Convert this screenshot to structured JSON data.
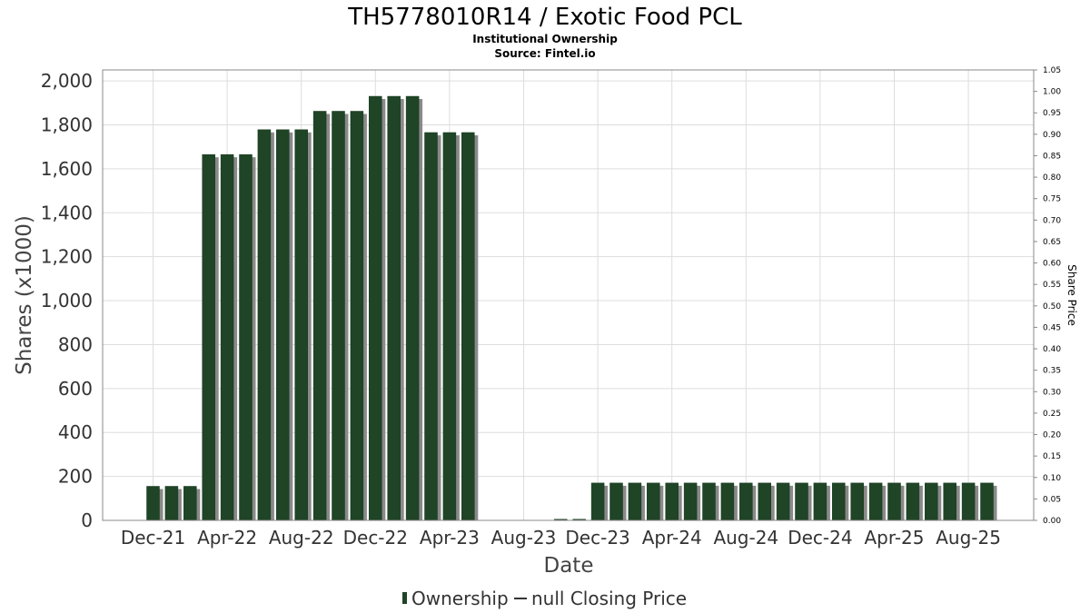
{
  "chart_data": {
    "type": "bar",
    "title": "TH5778010R14 / Exotic Food PCL",
    "subtitle_lines": [
      "Institutional Ownership",
      "Source: Fintel.io"
    ],
    "xlabel": "Date",
    "ylabel": "Shares (x1000)",
    "y2label": "Share Price",
    "ylim": [
      0,
      2050
    ],
    "y2lim": [
      0,
      1.05
    ],
    "y_ticks": [
      0,
      200,
      400,
      600,
      800,
      1000,
      1200,
      1400,
      1600,
      1800,
      2000
    ],
    "y_tick_labels": [
      "0",
      "200",
      "400",
      "600",
      "800",
      "1,000",
      "1,200",
      "1,400",
      "1,600",
      "1,800",
      "2,000"
    ],
    "y2_ticks": [
      "0.00",
      "0.05",
      "0.10",
      "0.15",
      "0.20",
      "0.25",
      "0.30",
      "0.35",
      "0.40",
      "0.45",
      "0.50",
      "0.55",
      "0.60",
      "0.65",
      "0.70",
      "0.75",
      "0.80",
      "0.85",
      "0.90",
      "0.95",
      "1.00",
      "1.05"
    ],
    "x_tick_labels": [
      "Dec-21",
      "Apr-22",
      "Aug-22",
      "Dec-22",
      "Apr-23",
      "Aug-23",
      "Dec-23",
      "Apr-24",
      "Aug-24",
      "Dec-24",
      "Apr-25",
      "Aug-25"
    ],
    "categories": [
      "Dec-21",
      "Jan-22",
      "Feb-22",
      "Mar-22",
      "Apr-22",
      "May-22",
      "Jun-22",
      "Jul-22",
      "Aug-22",
      "Sep-22",
      "Oct-22",
      "Nov-22",
      "Dec-22",
      "Jan-23",
      "Feb-23",
      "Mar-23",
      "Apr-23",
      "May-23",
      "Jun-23",
      "Jul-23",
      "Aug-23",
      "Sep-23",
      "Oct-23",
      "Nov-23",
      "Dec-23",
      "Jan-24",
      "Feb-24",
      "Mar-24",
      "Apr-24",
      "May-24",
      "Jun-24",
      "Jul-24",
      "Aug-24",
      "Sep-24",
      "Oct-24",
      "Nov-24",
      "Dec-24",
      "Jan-25",
      "Feb-25",
      "Mar-25",
      "Apr-25",
      "May-25",
      "Jun-25",
      "Jul-25",
      "Aug-25",
      "Sep-25"
    ],
    "series": [
      {
        "name": "Ownership",
        "color": "#1f4426",
        "values": [
          155,
          155,
          155,
          1665,
          1665,
          1665,
          1778,
          1778,
          1778,
          1862,
          1862,
          1862,
          1930,
          1930,
          1930,
          1765,
          1765,
          1765,
          0,
          0,
          0,
          0,
          5,
          5,
          170,
          170,
          170,
          170,
          170,
          170,
          170,
          170,
          170,
          170,
          170,
          170,
          170,
          170,
          170,
          170,
          170,
          170,
          170,
          170,
          170,
          170
        ]
      }
    ],
    "legend": {
      "position": "bottom",
      "items": [
        {
          "label": "Ownership",
          "color": "#1f4426"
        },
        {
          "label": "null Closing Price",
          "color": "#333333"
        }
      ]
    },
    "grid": true
  }
}
